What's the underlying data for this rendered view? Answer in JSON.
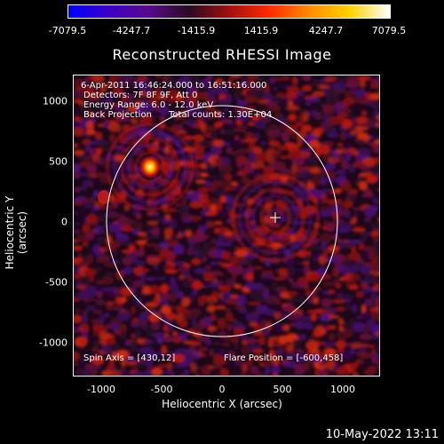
{
  "colorbar": {
    "ticks": [
      "-7079.5",
      "-4247.7",
      "-1415.9",
      "1415.9",
      "4247.7",
      "7079.5"
    ],
    "colors": [
      "#0000ff",
      "#3b00c8",
      "#5a0a8c",
      "#2a0a20",
      "#a01010",
      "#ff2a00",
      "#ff8c00",
      "#ffd200",
      "#ffffff"
    ]
  },
  "title": "Reconstructed RHESSI Image",
  "overlay": {
    "time_range": "6-Apr-2011 16:46:24.000 to 16:51:16.000",
    "detectors": "Detectors: 7F 8F 9F, Att 0",
    "energy": "Energy Range: 6.0 - 12.0 keV",
    "method": "Back Projection",
    "counts": "Total counts: 1.30E+04",
    "spin_axis": "Spin Axis = [430,12]",
    "flare_position": "Flare Position = [-600,458]"
  },
  "axes": {
    "xlabel": "Heliocentric X (arcsec)",
    "ylabel": "Heliocentric Y (arcsec)",
    "xticks": [
      "-1000",
      "-500",
      "0",
      "500",
      "1000"
    ],
    "yticks": [
      "1000",
      "500",
      "0",
      "-500",
      "-1000"
    ]
  },
  "timestamp": "10-May-2022 13:11"
}
